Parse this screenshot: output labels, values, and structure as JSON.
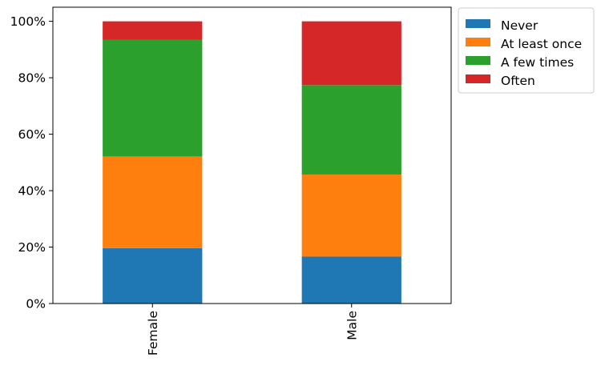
{
  "chart_data": {
    "type": "bar",
    "stacked": true,
    "categories": [
      "Female",
      "Male"
    ],
    "series": [
      {
        "name": "Never",
        "color": "#1f77b4",
        "values": [
          19.6,
          16.6
        ]
      },
      {
        "name": "At least once",
        "color": "#ff7f0e",
        "values": [
          32.5,
          29.1
        ]
      },
      {
        "name": "A few times",
        "color": "#2ca02c",
        "values": [
          41.4,
          31.7
        ]
      },
      {
        "name": "Often",
        "color": "#d62728",
        "values": [
          6.5,
          22.6
        ]
      }
    ],
    "yticks": [
      "0%",
      "20%",
      "40%",
      "60%",
      "80%",
      "100%"
    ],
    "ylim": [
      0,
      105
    ],
    "legend_position": "outside-top-right",
    "grid": false,
    "title": "",
    "xlabel": "",
    "ylabel": ""
  }
}
